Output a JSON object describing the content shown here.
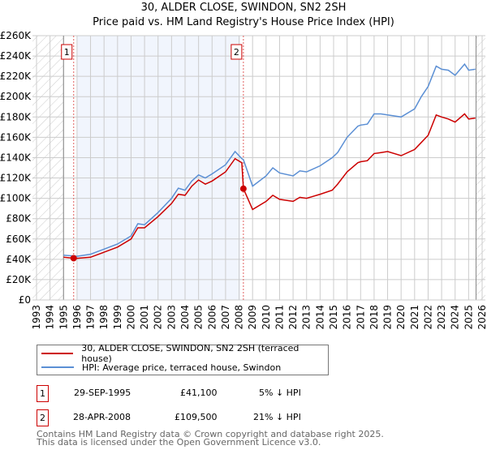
{
  "title": "30, ALDER CLOSE, SWINDON, SN2 2SH",
  "subtitle": "Price paid vs. HM Land Registry's House Price Index (HPI)",
  "chart_data": {
    "type": "line",
    "title": "30, ALDER CLOSE, SWINDON, SN2 2SH",
    "subtitle": "Price paid vs. HM Land Registry's House Price Index (HPI)",
    "xlim": [
      1993,
      2026
    ],
    "ylim": [
      0,
      260000
    ],
    "x_ticks": [
      "1993",
      "1994",
      "1995",
      "1996",
      "1997",
      "1998",
      "1999",
      "2000",
      "2001",
      "2002",
      "2003",
      "2004",
      "2005",
      "2006",
      "2007",
      "2008",
      "2009",
      "2010",
      "2011",
      "2012",
      "2013",
      "2014",
      "2015",
      "2016",
      "2017",
      "2018",
      "2019",
      "2020",
      "2021",
      "2022",
      "2023",
      "2024",
      "2025",
      "2026"
    ],
    "y_ticks": [
      "£0",
      "£20K",
      "£40K",
      "£60K",
      "£80K",
      "£100K",
      "£120K",
      "£140K",
      "£160K",
      "£180K",
      "£200K",
      "£220K",
      "£240K",
      "£260K"
    ],
    "grid": true,
    "legend_position": "below",
    "series": [
      {
        "name": "30, ALDER CLOSE, SWINDON, SN2 2SH (terraced house)",
        "color": "#cc0000",
        "x": [
          1995.0,
          1995.75,
          1996,
          1997,
          1998,
          1999,
          2000,
          2000.5,
          2001,
          2002,
          2003,
          2003.5,
          2004,
          2004.5,
          2005,
          2005.5,
          2006,
          2007,
          2007.7,
          2008.2,
          2008.32,
          2009,
          2010,
          2010.5,
          2011,
          2012,
          2012.5,
          2013,
          2014,
          2014.9,
          2015.3,
          2016,
          2016.8,
          2017,
          2017.5,
          2018,
          2018.5,
          2019,
          2020,
          2021,
          2021.5,
          2022,
          2022.6,
          2023,
          2023.5,
          2024,
          2024.7,
          2025,
          2025.5
        ],
        "y": [
          42000,
          41100,
          41000,
          42000,
          47000,
          52000,
          60000,
          71000,
          71000,
          82000,
          95000,
          104000,
          103000,
          112000,
          118000,
          114000,
          117000,
          126000,
          139000,
          135000,
          109500,
          89000,
          97000,
          103000,
          99000,
          97000,
          101000,
          100000,
          104000,
          108000,
          114000,
          126000,
          135000,
          136000,
          137000,
          144000,
          145000,
          146000,
          142000,
          148000,
          155000,
          162000,
          182000,
          180000,
          178000,
          175000,
          183000,
          178000,
          179000
        ]
      },
      {
        "name": "HPI: Average price, terraced house, Swindon",
        "color": "#5b8fd4",
        "x": [
          1995.0,
          1995.75,
          1996,
          1997,
          1998,
          1999,
          2000,
          2000.5,
          2001,
          2002,
          2003,
          2003.5,
          2004,
          2004.5,
          2005,
          2005.5,
          2006,
          2007,
          2007.7,
          2008.2,
          2008.32,
          2009,
          2010,
          2010.5,
          2011,
          2012,
          2012.5,
          2013,
          2014,
          2014.9,
          2015.3,
          2016,
          2016.8,
          2017,
          2017.5,
          2018,
          2018.5,
          2019,
          2020,
          2021,
          2021.5,
          2022,
          2022.6,
          2023,
          2023.5,
          2024,
          2024.7,
          2025,
          2025.5
        ],
        "y": [
          44000,
          43300,
          43000,
          45000,
          50000,
          55000,
          63000,
          75000,
          74000,
          86000,
          100000,
          110000,
          108000,
          117000,
          123000,
          120000,
          124000,
          133000,
          146000,
          139000,
          138000,
          112000,
          122000,
          130000,
          125000,
          122000,
          127000,
          126000,
          132000,
          140000,
          145000,
          160000,
          171000,
          172000,
          173000,
          183000,
          183000,
          182000,
          180000,
          188000,
          200000,
          210000,
          230000,
          227000,
          226000,
          221000,
          232000,
          226000,
          227000
        ]
      }
    ],
    "sales": [
      {
        "label": "1",
        "date": "29-SEP-1995",
        "x": 1995.75,
        "price": "£41,100",
        "value": 41100,
        "hpi_diff": "5% ↓ HPI"
      },
      {
        "label": "2",
        "date": "28-APR-2008",
        "x": 2008.32,
        "price": "£109,500",
        "value": 109500,
        "hpi_diff": "21% ↓ HPI"
      }
    ]
  },
  "footer": {
    "line1": "Contains HM Land Registry data © Crown copyright and database right 2025.",
    "line2": "This data is licensed under the Open Government Licence v3.0."
  }
}
